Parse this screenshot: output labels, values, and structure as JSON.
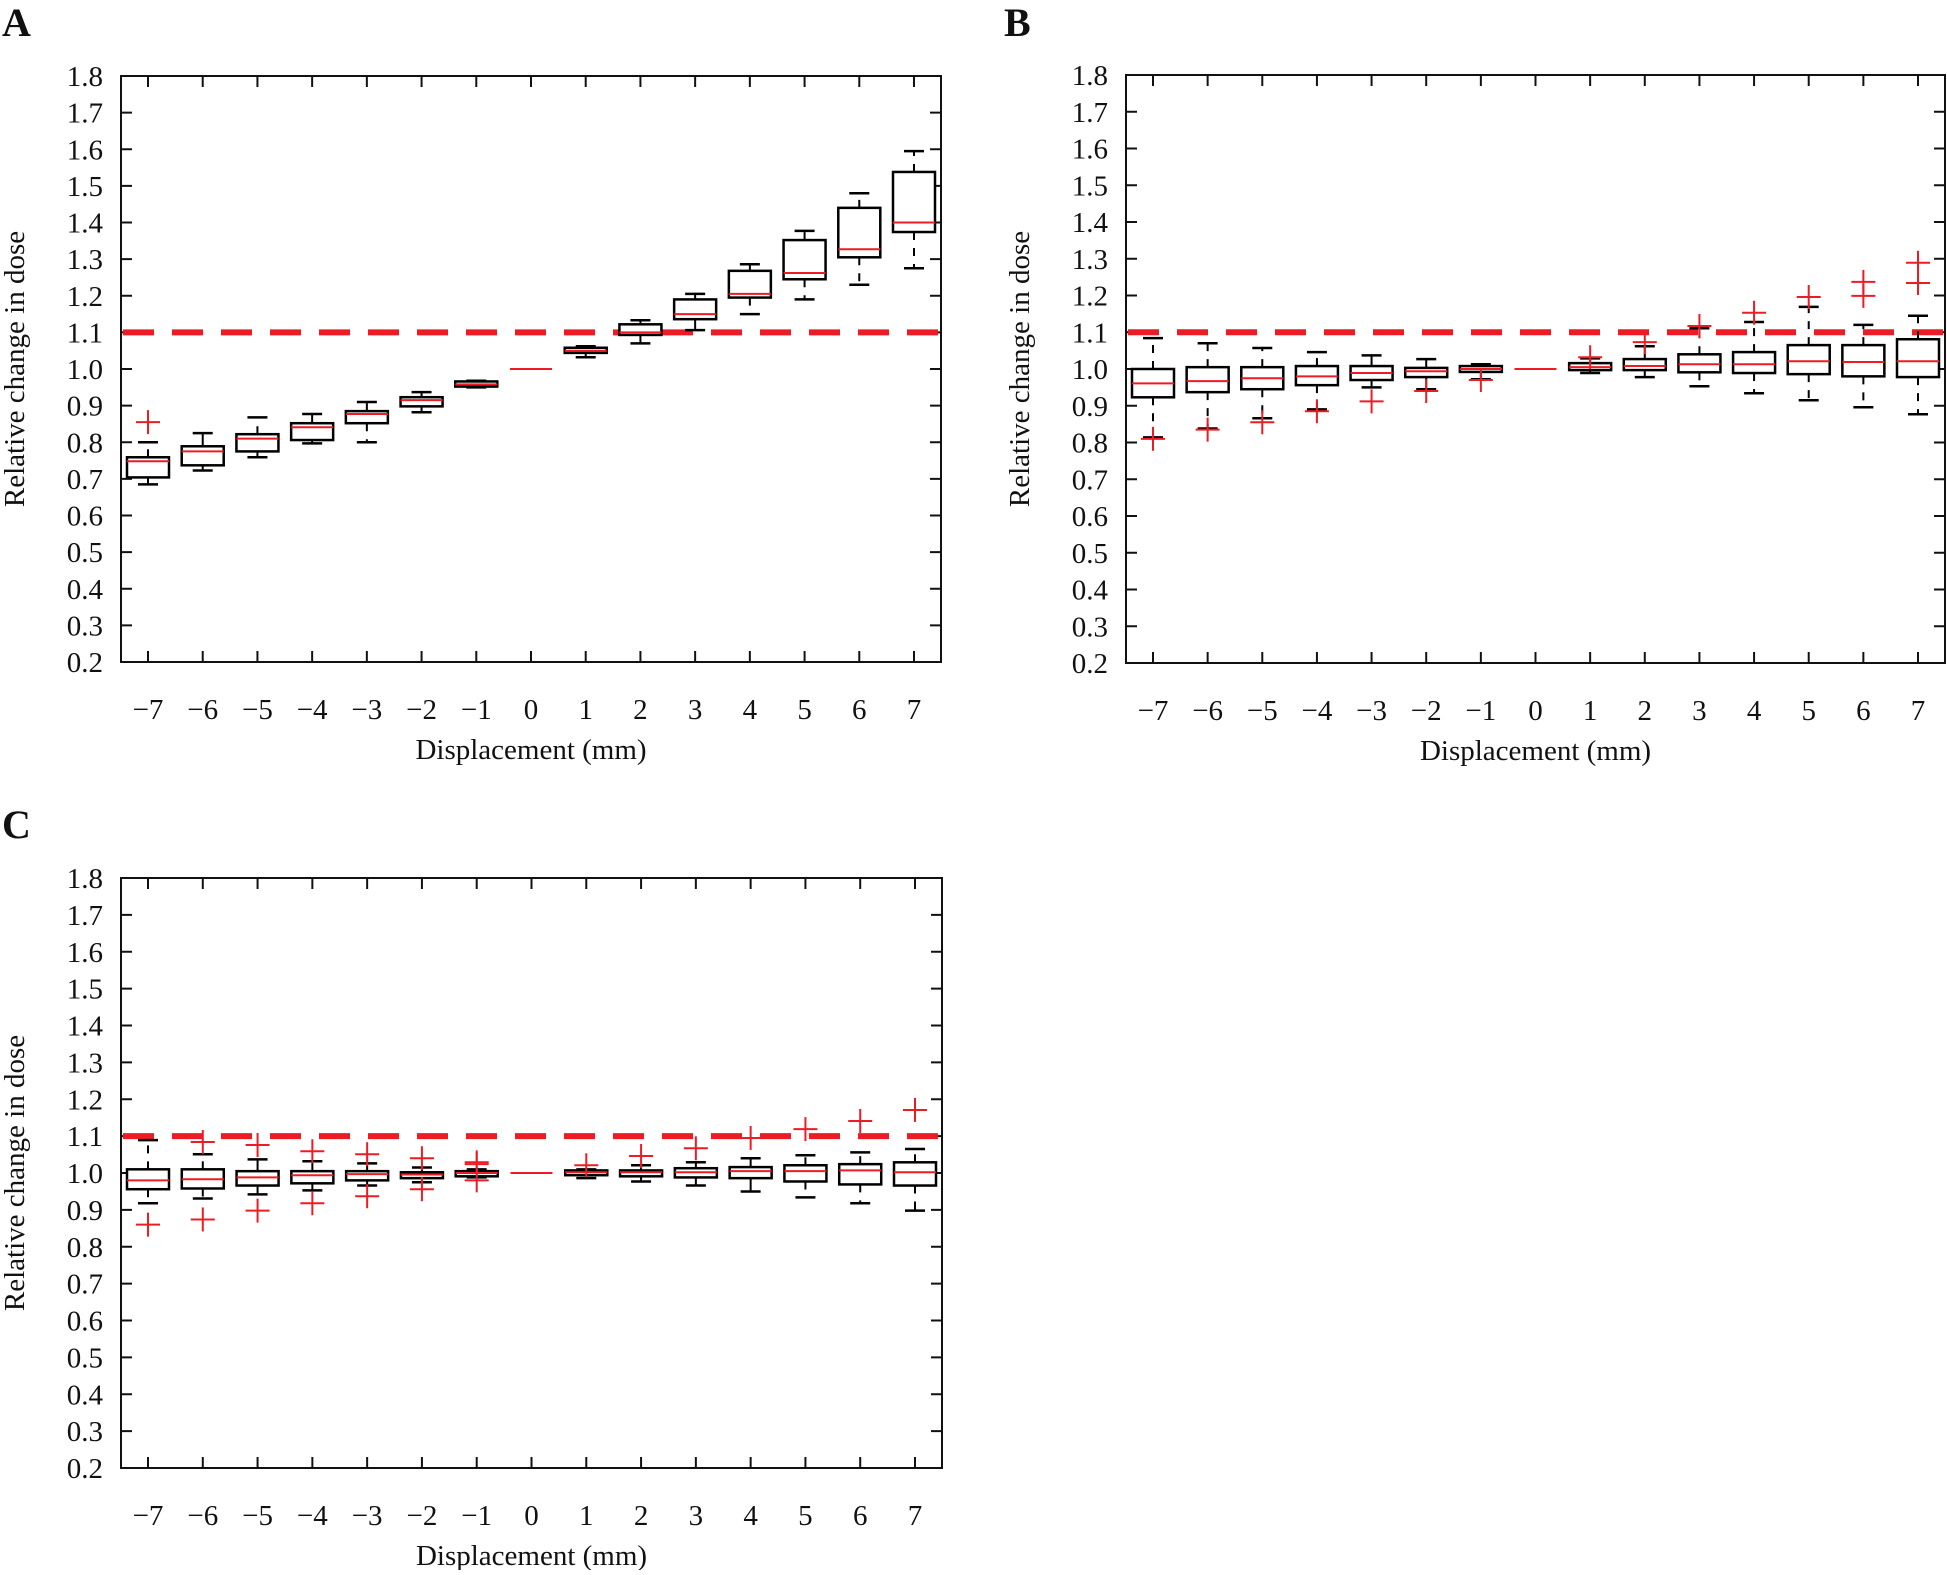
{
  "figure": {
    "panels": [
      "A",
      "B",
      "C"
    ]
  },
  "chart_data": [
    {
      "panel_label": "A",
      "type": "boxplot",
      "title": "",
      "xlabel": "Displacement (mm)",
      "ylabel": "Relative change in dose",
      "categories": [
        "−7",
        "−6",
        "−5",
        "−4",
        "−3",
        "−2",
        "−1",
        "0",
        "1",
        "2",
        "3",
        "4",
        "5",
        "6",
        "7"
      ],
      "x": [
        -7,
        -6,
        -5,
        -4,
        -3,
        -2,
        -1,
        0,
        1,
        2,
        3,
        4,
        5,
        6,
        7
      ],
      "ylim": [
        0.2,
        1.8
      ],
      "yticks": [
        "0.2",
        "0.3",
        "0.4",
        "0.5",
        "0.6",
        "0.7",
        "0.8",
        "0.9",
        "1.0",
        "1.1",
        "1.2",
        "1.3",
        "1.4",
        "1.5",
        "1.6",
        "1.7",
        "1.8"
      ],
      "threshold": {
        "y": 1.1,
        "style": "dashed",
        "color": "#ED1C24"
      },
      "box_color": "#000000",
      "median_color": "#ED1C24",
      "outlier_color": "#ED1C24",
      "grid": false,
      "boxes": [
        {
          "x": -7,
          "whisker_low": 0.685,
          "q1": 0.704,
          "median": 0.748,
          "q3": 0.759,
          "whisker_high": 0.8,
          "outliers": [
            0.855
          ]
        },
        {
          "x": -6,
          "whisker_low": 0.723,
          "q1": 0.737,
          "median": 0.775,
          "q3": 0.789,
          "whisker_high": 0.825,
          "outliers": []
        },
        {
          "x": -5,
          "whisker_low": 0.759,
          "q1": 0.775,
          "median": 0.81,
          "q3": 0.822,
          "whisker_high": 0.868,
          "outliers": []
        },
        {
          "x": -4,
          "whisker_low": 0.797,
          "q1": 0.806,
          "median": 0.841,
          "q3": 0.852,
          "whisker_high": 0.877,
          "outliers": []
        },
        {
          "x": -3,
          "whisker_low": 0.8,
          "q1": 0.852,
          "median": 0.877,
          "q3": 0.885,
          "whisker_high": 0.91,
          "outliers": []
        },
        {
          "x": -2,
          "whisker_low": 0.882,
          "q1": 0.898,
          "median": 0.915,
          "q3": 0.923,
          "whisker_high": 0.937,
          "outliers": []
        },
        {
          "x": -1,
          "whisker_low": 0.95,
          "q1": 0.952,
          "median": 0.958,
          "q3": 0.966,
          "whisker_high": 0.968,
          "outliers": []
        },
        {
          "x": 0,
          "whisker_low": 1.0,
          "q1": 1.0,
          "median": 1.0,
          "q3": 1.0,
          "whisker_high": 1.0,
          "outliers": []
        },
        {
          "x": 1,
          "whisker_low": 1.032,
          "q1": 1.044,
          "median": 1.05,
          "q3": 1.058,
          "whisker_high": 1.062,
          "outliers": []
        },
        {
          "x": 2,
          "whisker_low": 1.07,
          "q1": 1.093,
          "median": 1.1,
          "q3": 1.122,
          "whisker_high": 1.133,
          "outliers": []
        },
        {
          "x": 3,
          "whisker_low": 1.106,
          "q1": 1.136,
          "median": 1.15,
          "q3": 1.19,
          "whisker_high": 1.205,
          "outliers": []
        },
        {
          "x": 4,
          "whisker_low": 1.15,
          "q1": 1.195,
          "median": 1.205,
          "q3": 1.268,
          "whisker_high": 1.286,
          "outliers": []
        },
        {
          "x": 5,
          "whisker_low": 1.19,
          "q1": 1.245,
          "median": 1.262,
          "q3": 1.352,
          "whisker_high": 1.377,
          "outliers": []
        },
        {
          "x": 6,
          "whisker_low": 1.23,
          "q1": 1.305,
          "median": 1.327,
          "q3": 1.44,
          "whisker_high": 1.48,
          "outliers": []
        },
        {
          "x": 7,
          "whisker_low": 1.275,
          "q1": 1.374,
          "median": 1.4,
          "q3": 1.538,
          "whisker_high": 1.595,
          "outliers": []
        }
      ]
    },
    {
      "panel_label": "B",
      "type": "boxplot",
      "title": "",
      "xlabel": "Displacement (mm)",
      "ylabel": "Relative change in dose",
      "categories": [
        "−7",
        "−6",
        "−5",
        "−4",
        "−3",
        "−2",
        "−1",
        "0",
        "1",
        "2",
        "3",
        "4",
        "5",
        "6",
        "7"
      ],
      "x": [
        -7,
        -6,
        -5,
        -4,
        -3,
        -2,
        -1,
        0,
        1,
        2,
        3,
        4,
        5,
        6,
        7
      ],
      "ylim": [
        0.2,
        1.8
      ],
      "yticks": [
        "0.2",
        "0.3",
        "0.4",
        "0.5",
        "0.6",
        "0.7",
        "0.8",
        "0.9",
        "1.0",
        "1.1",
        "1.2",
        "1.3",
        "1.4",
        "1.5",
        "1.6",
        "1.7",
        "1.8"
      ],
      "threshold": {
        "y": 1.1,
        "style": "dashed",
        "color": "#ED1C24"
      },
      "box_color": "#000000",
      "median_color": "#ED1C24",
      "outlier_color": "#ED1C24",
      "grid": false,
      "boxes": [
        {
          "x": -7,
          "whisker_low": 0.814,
          "q1": 0.923,
          "median": 0.961,
          "q3": 1.0,
          "whisker_high": 1.084,
          "outliers": [
            0.81
          ]
        },
        {
          "x": -6,
          "whisker_low": 0.838,
          "q1": 0.937,
          "median": 0.967,
          "q3": 1.005,
          "whisker_high": 1.07,
          "outliers": [
            0.835
          ]
        },
        {
          "x": -5,
          "whisker_low": 0.866,
          "q1": 0.945,
          "median": 0.975,
          "q3": 1.005,
          "whisker_high": 1.057,
          "outliers": [
            0.855
          ]
        },
        {
          "x": -4,
          "whisker_low": 0.89,
          "q1": 0.956,
          "median": 0.98,
          "q3": 1.008,
          "whisker_high": 1.046,
          "outliers": [
            0.885
          ]
        },
        {
          "x": -3,
          "whisker_low": 0.95,
          "q1": 0.97,
          "median": 0.989,
          "q3": 1.008,
          "whisker_high": 1.037,
          "outliers": [
            0.912
          ]
        },
        {
          "x": -2,
          "whisker_low": 0.945,
          "q1": 0.978,
          "median": 0.994,
          "q3": 1.003,
          "whisker_high": 1.027,
          "outliers": [
            0.94
          ]
        },
        {
          "x": -1,
          "whisker_low": 0.972,
          "q1": 0.992,
          "median": 1.0,
          "q3": 1.008,
          "whisker_high": 1.013,
          "outliers": [
            0.97
          ]
        },
        {
          "x": 0,
          "whisker_low": 1.0,
          "q1": 1.0,
          "median": 1.0,
          "q3": 1.0,
          "whisker_high": 1.0,
          "outliers": []
        },
        {
          "x": 1,
          "whisker_low": 0.989,
          "q1": 0.997,
          "median": 1.005,
          "q3": 1.016,
          "whisker_high": 1.029,
          "outliers": [
            1.032
          ]
        },
        {
          "x": 2,
          "whisker_low": 0.978,
          "q1": 0.997,
          "median": 1.008,
          "q3": 1.027,
          "whisker_high": 1.062,
          "outliers": [
            1.073
          ]
        },
        {
          "x": 3,
          "whisker_low": 0.953,
          "q1": 0.991,
          "median": 1.013,
          "q3": 1.04,
          "whisker_high": 1.111,
          "outliers": [
            1.117
          ]
        },
        {
          "x": 4,
          "whisker_low": 0.934,
          "q1": 0.989,
          "median": 1.013,
          "q3": 1.046,
          "whisker_high": 1.128,
          "outliers": [
            1.153
          ]
        },
        {
          "x": 5,
          "whisker_low": 0.915,
          "q1": 0.986,
          "median": 1.021,
          "q3": 1.065,
          "whisker_high": 1.169,
          "outliers": [
            1.196
          ]
        },
        {
          "x": 6,
          "whisker_low": 0.896,
          "q1": 0.98,
          "median": 1.019,
          "q3": 1.065,
          "whisker_high": 1.12,
          "outliers": [
            1.199,
            1.237
          ]
        },
        {
          "x": 7,
          "whisker_low": 0.877,
          "q1": 0.978,
          "median": 1.021,
          "q3": 1.081,
          "whisker_high": 1.145,
          "outliers": [
            1.234,
            1.289
          ]
        }
      ]
    },
    {
      "panel_label": "C",
      "type": "boxplot",
      "title": "",
      "xlabel": "Displacement (mm)",
      "ylabel": "Relative change in dose",
      "categories": [
        "−7",
        "−6",
        "−5",
        "−4",
        "−3",
        "−2",
        "−1",
        "0",
        "1",
        "2",
        "3",
        "4",
        "5",
        "6",
        "7"
      ],
      "x": [
        -7,
        -6,
        -5,
        -4,
        -3,
        -2,
        -1,
        0,
        1,
        2,
        3,
        4,
        5,
        6,
        7
      ],
      "ylim": [
        0.2,
        1.8
      ],
      "yticks": [
        "0.2",
        "0.3",
        "0.4",
        "0.5",
        "0.6",
        "0.7",
        "0.8",
        "0.9",
        "1.0",
        "1.1",
        "1.2",
        "1.3",
        "1.4",
        "1.5",
        "1.6",
        "1.7",
        "1.8"
      ],
      "threshold": {
        "y": 1.1,
        "style": "dashed",
        "color": "#ED1C24"
      },
      "box_color": "#000000",
      "median_color": "#ED1C24",
      "outlier_color": "#ED1C24",
      "grid": false,
      "boxes": [
        {
          "x": -7,
          "whisker_low": 0.918,
          "q1": 0.956,
          "median": 0.98,
          "q3": 1.01,
          "whisker_high": 1.089,
          "outliers": [
            0.86
          ]
        },
        {
          "x": -6,
          "whisker_low": 0.931,
          "q1": 0.958,
          "median": 0.983,
          "q3": 1.01,
          "whisker_high": 1.051,
          "outliers": [
            0.874,
            1.084
          ]
        },
        {
          "x": -5,
          "whisker_low": 0.942,
          "q1": 0.966,
          "median": 0.988,
          "q3": 1.005,
          "whisker_high": 1.037,
          "outliers": [
            0.898,
            1.076
          ]
        },
        {
          "x": -4,
          "whisker_low": 0.953,
          "q1": 0.972,
          "median": 0.994,
          "q3": 1.005,
          "whisker_high": 1.032,
          "outliers": [
            0.918,
            1.059
          ]
        },
        {
          "x": -3,
          "whisker_low": 0.966,
          "q1": 0.98,
          "median": 0.997,
          "q3": 1.005,
          "whisker_high": 1.026,
          "outliers": [
            0.937,
            1.051
          ]
        },
        {
          "x": -2,
          "whisker_low": 0.975,
          "q1": 0.986,
          "median": 0.996,
          "q3": 1.002,
          "whisker_high": 1.015,
          "outliers": [
            0.956,
            1.04
          ]
        },
        {
          "x": -1,
          "whisker_low": 0.988,
          "q1": 0.991,
          "median": 1.0,
          "q3": 1.005,
          "whisker_high": 1.01,
          "outliers": [
            0.98,
            1.024,
            1.029
          ]
        },
        {
          "x": 0,
          "whisker_low": 1.0,
          "q1": 1.0,
          "median": 1.0,
          "q3": 1.0,
          "whisker_high": 1.0,
          "outliers": []
        },
        {
          "x": 1,
          "whisker_low": 0.986,
          "q1": 0.994,
          "median": 1.002,
          "q3": 1.007,
          "whisker_high": 1.01,
          "outliers": [
            1.021
          ]
        },
        {
          "x": 2,
          "whisker_low": 0.977,
          "q1": 0.991,
          "median": 1.002,
          "q3": 1.007,
          "whisker_high": 1.021,
          "outliers": [
            1.046
          ]
        },
        {
          "x": 3,
          "whisker_low": 0.966,
          "q1": 0.988,
          "median": 1.002,
          "q3": 1.013,
          "whisker_high": 1.029,
          "outliers": [
            1.067
          ]
        },
        {
          "x": 4,
          "whisker_low": 0.95,
          "q1": 0.986,
          "median": 1.005,
          "q3": 1.016,
          "whisker_high": 1.04,
          "outliers": [
            1.095
          ]
        },
        {
          "x": 5,
          "whisker_low": 0.934,
          "q1": 0.977,
          "median": 1.005,
          "q3": 1.021,
          "whisker_high": 1.048,
          "outliers": [
            1.119
          ]
        },
        {
          "x": 6,
          "whisker_low": 0.918,
          "q1": 0.969,
          "median": 1.007,
          "q3": 1.024,
          "whisker_high": 1.056,
          "outliers": [
            1.141
          ]
        },
        {
          "x": 7,
          "whisker_low": 0.898,
          "q1": 0.966,
          "median": 1.002,
          "q3": 1.029,
          "whisker_high": 1.065,
          "outliers": [
            1.171
          ]
        }
      ]
    }
  ]
}
